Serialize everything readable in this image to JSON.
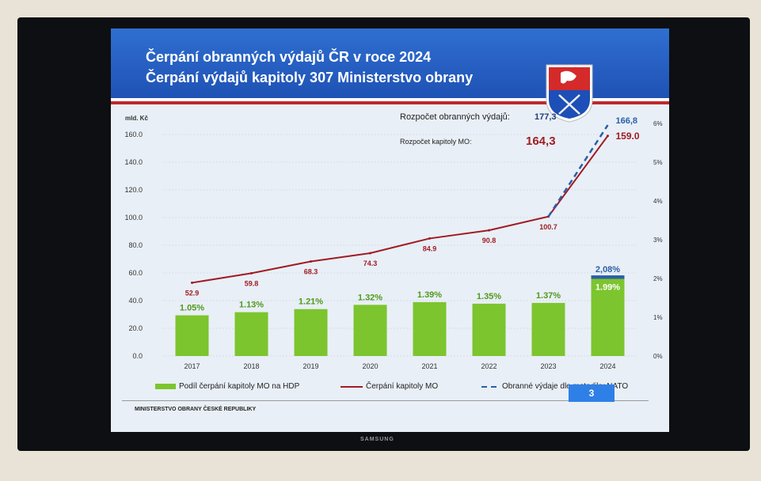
{
  "slide": {
    "title_line1": "Čerpání obranných výdajů ČR v roce 2024",
    "title_line2": "Čerpání výdajů kapitoly 307 Ministerstvo obrany",
    "footer": "MINISTERSTVO OBRANY ČESKÉ REPUBLIKY",
    "page_number": "3",
    "tv_brand": "SAMSUNG",
    "budget_defence_label": "Rozpočet obranných výdajů:",
    "budget_defence_value": "177,3",
    "budget_mo_label": "Rozpočet kapitoly MO:",
    "budget_mo_value": "164,3"
  },
  "chart_data": {
    "type": "bar+line",
    "ylabel": "mld. Kč",
    "ylim": [
      0,
      160
    ],
    "yticks": [
      "0.0",
      "20.0",
      "40.0",
      "60.0",
      "80.0",
      "100.0",
      "120.0",
      "140.0",
      "160.0"
    ],
    "y2lim": [
      0,
      6
    ],
    "y2ticks": [
      "0%",
      "1%",
      "2%",
      "3%",
      "4%",
      "5%",
      "6%"
    ],
    "categories": [
      "2017",
      "2018",
      "2019",
      "2020",
      "2021",
      "2022",
      "2023",
      "2024"
    ],
    "series": [
      {
        "name": "Podíl čerpání kapitoly MO na HDP",
        "type": "bar",
        "axis": "right",
        "color": "#7cc52e",
        "values": [
          1.05,
          1.13,
          1.21,
          1.32,
          1.39,
          1.35,
          1.37,
          1.99
        ],
        "labels": [
          "1.05%",
          "1.13%",
          "1.21%",
          "1.32%",
          "1.39%",
          "1.35%",
          "1.37%",
          "1.99%"
        ]
      },
      {
        "name": "Čerpání kapitoly MO",
        "type": "line",
        "axis": "left",
        "color": "#a01c24",
        "values": [
          52.9,
          59.8,
          68.3,
          74.3,
          84.9,
          90.8,
          100.7,
          159.0
        ],
        "labels": [
          "52.9",
          "59.8",
          "68.3",
          "74.3",
          "84.9",
          "90.8",
          "100.7",
          "159.0"
        ]
      },
      {
        "name": "Obranné výdaje dle metodiky NATO",
        "type": "dashed-line",
        "axis": "left",
        "color": "#2a5fa8",
        "x": [
          "2023",
          "2024"
        ],
        "values": [
          100.7,
          166.8
        ],
        "labels": [
          "",
          "166,8"
        ],
        "bar_share_2024": 2.08,
        "bar_share_label_2024": "2,08%"
      }
    ],
    "legend": "bottom",
    "grid": true
  }
}
